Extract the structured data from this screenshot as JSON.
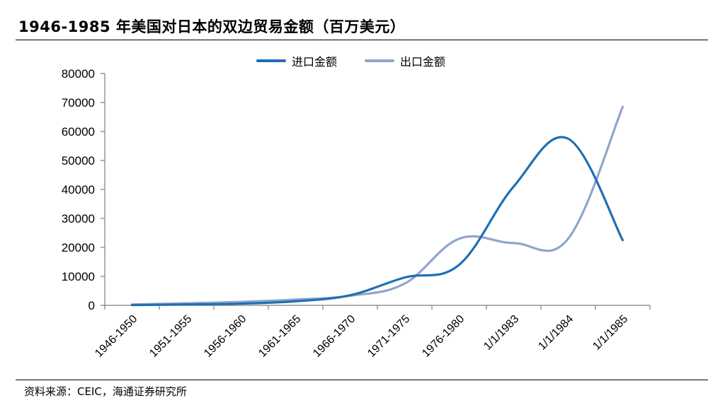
{
  "title": "1946-1985 年美国对日本的双边贸易金额（百万美元）",
  "source": "资料来源：CEIC，海通证券研究所",
  "chart_data": {
    "type": "line",
    "categories": [
      "1946-1950",
      "1951-1955",
      "1956-1960",
      "1961-1965",
      "1966-1970",
      "1971-1975",
      "1976-1980",
      "1/1/1983",
      "1/1/1984",
      "1/1/1985"
    ],
    "series": [
      {
        "name": "进口金额",
        "color": "#1f6fb2",
        "values": [
          100,
          300,
          600,
          1400,
          3500,
          9600,
          14000,
          41000,
          57500,
          22500
        ]
      },
      {
        "name": "出口金额",
        "color": "#8fa6cc",
        "values": [
          300,
          700,
          1200,
          2000,
          3300,
          7500,
          23000,
          21500,
          23000,
          68500
        ]
      }
    ],
    "ylim": [
      0,
      80000
    ],
    "yticks": [
      0,
      10000,
      20000,
      30000,
      40000,
      50000,
      60000,
      70000,
      80000
    ],
    "grid": false,
    "legend": "top-center"
  }
}
